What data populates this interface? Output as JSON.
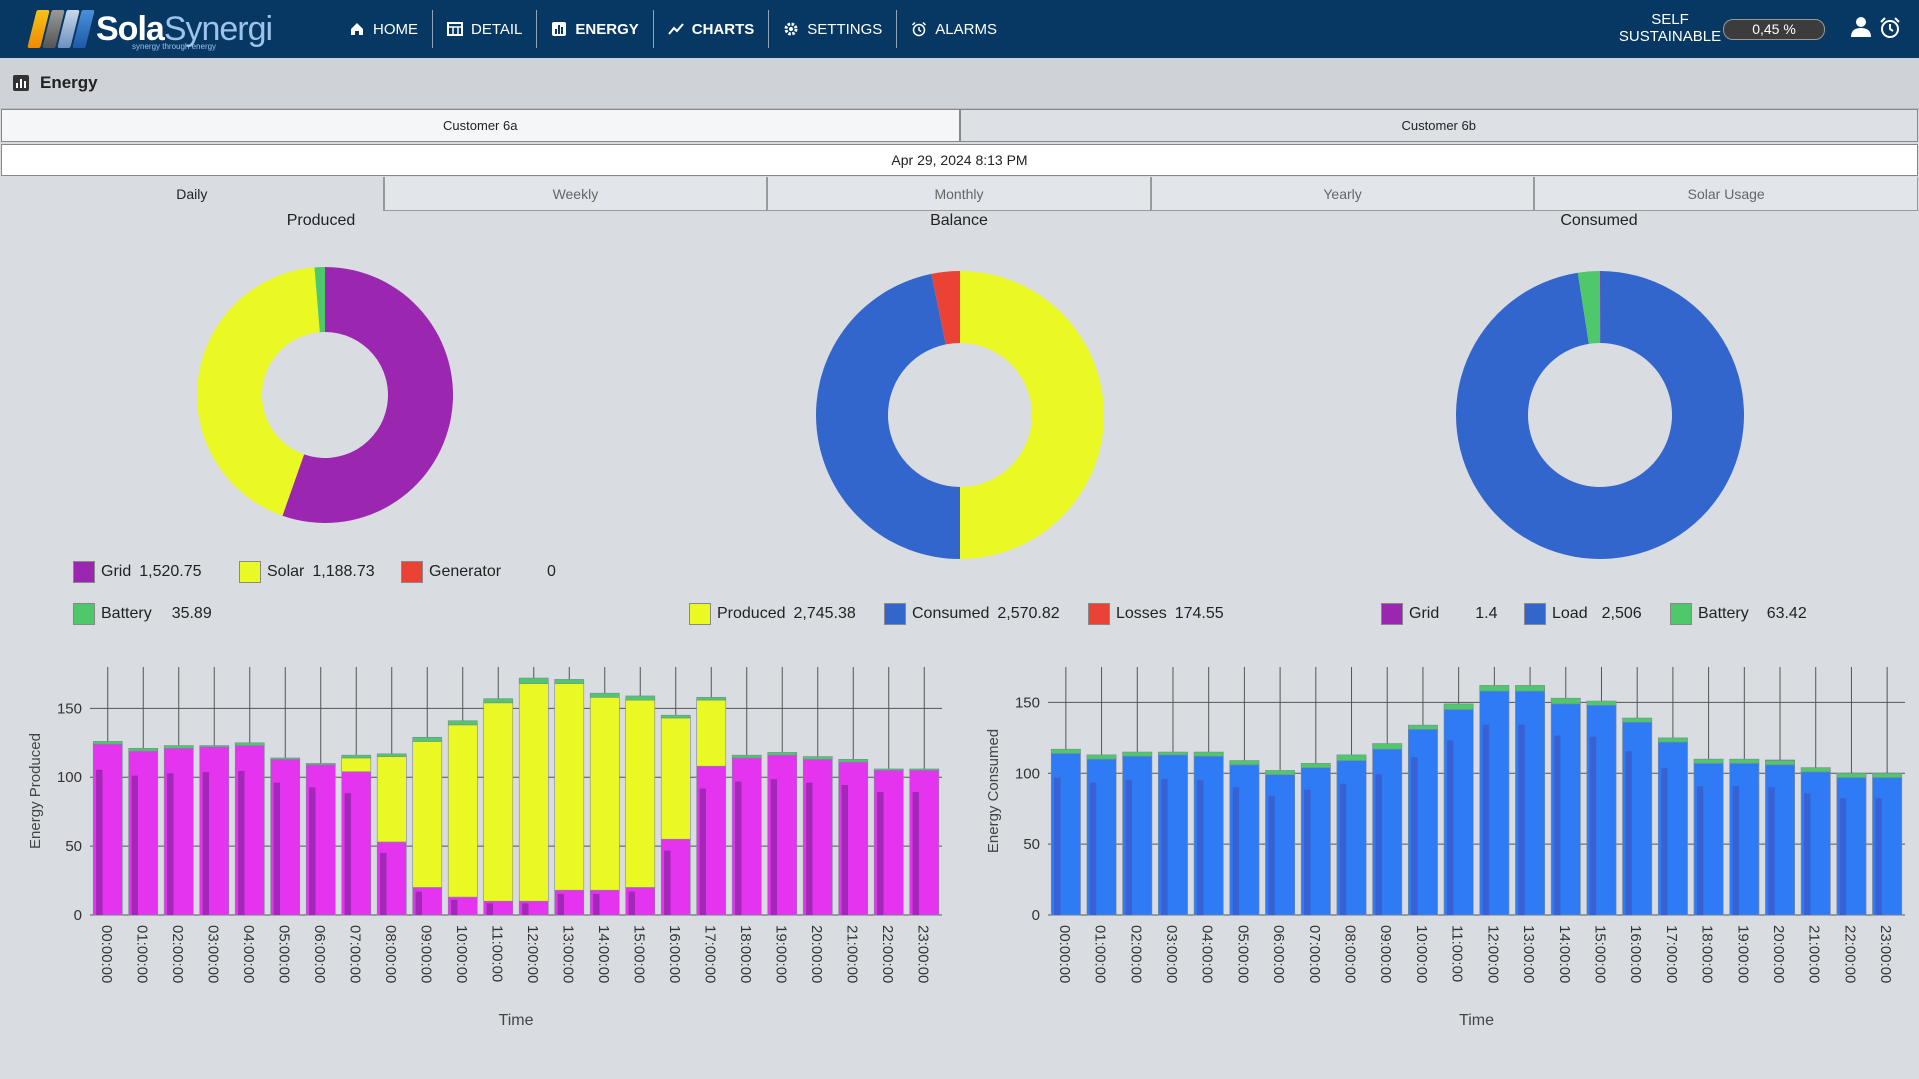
{
  "app": {
    "logo_main": "Sola",
    "logo_accent": "Synergi",
    "logo_tagline": "synergy through energy"
  },
  "nav": [
    {
      "label": "HOME",
      "icon": "home-icon",
      "active": false
    },
    {
      "label": "DETAIL",
      "icon": "table-icon",
      "active": false
    },
    {
      "label": "ENERGY",
      "icon": "bar-chart-icon",
      "active": true
    },
    {
      "label": "CHARTS",
      "icon": "line-chart-icon",
      "active": true
    },
    {
      "label": "SETTINGS",
      "icon": "gear-icon",
      "active": false
    },
    {
      "label": "ALARMS",
      "icon": "alarm-clock-icon",
      "active": false
    }
  ],
  "self_sustainable": {
    "label_line1": "SELF",
    "label_line2": "SUSTAINABLE",
    "value": "0,45 %"
  },
  "page": {
    "title": "Energy"
  },
  "customers": {
    "tab_a": "Customer 6a",
    "tab_b": "Customer 6b"
  },
  "date_label": "Apr 29, 2024 8:13 PM",
  "period_tabs": [
    "Daily",
    "Weekly",
    "Monthly",
    "Yearly",
    "Solar Usage"
  ],
  "colors": {
    "grid": "#9b27b0",
    "solar": "#eaf823",
    "generator": "#ea4335",
    "battery": "#4ec86b",
    "consumed": "#3366cc",
    "losses": "#ea4335",
    "grid_bar": "#e534f0",
    "grid_bar_inner": "#9b27b0",
    "load_bar": "#2f7bf5",
    "load_bar_inner": "#3a5fcf"
  },
  "donuts": {
    "produced": {
      "title": "Produced",
      "legend": [
        {
          "name": "Grid",
          "display": "1,520.75",
          "value": 1520.75,
          "color": "#9b27b0"
        },
        {
          "name": "Solar",
          "display": "1,188.73",
          "value": 1188.73,
          "color": "#eaf823"
        },
        {
          "name": "Generator",
          "display": "0",
          "value": 0,
          "color": "#ea4335"
        },
        {
          "name": "Battery",
          "display": "35.89",
          "value": 35.89,
          "color": "#4ec86b"
        }
      ]
    },
    "balance": {
      "title": "Balance",
      "legend": [
        {
          "name": "Produced",
          "display": "2,745.38",
          "value": 2745.38,
          "color": "#eaf823"
        },
        {
          "name": "Consumed",
          "display": "2,570.82",
          "value": 2570.82,
          "color": "#3366cc"
        },
        {
          "name": "Losses",
          "display": "174.55",
          "value": 174.55,
          "color": "#ea4335"
        }
      ]
    },
    "consumed": {
      "title": "Consumed",
      "legend": [
        {
          "name": "Grid",
          "display": "1.4",
          "value": 1.4,
          "color": "#9b27b0"
        },
        {
          "name": "Load",
          "display": "2,506",
          "value": 2506,
          "color": "#3366cc"
        },
        {
          "name": "Battery",
          "display": "63.42",
          "value": 63.42,
          "color": "#4ec86b"
        }
      ]
    }
  },
  "chart_data": [
    {
      "type": "bar",
      "stacked": true,
      "ylabel": "Energy Produced",
      "xlabel": "Time",
      "ylim": [
        0,
        180
      ],
      "yticks": [
        0,
        50,
        100,
        150
      ],
      "grid": true,
      "categories": [
        "00:00:00",
        "01:00:00",
        "02:00:00",
        "03:00:00",
        "04:00:00",
        "05:00:00",
        "06:00:00",
        "07:00:00",
        "08:00:00",
        "09:00:00",
        "10:00:00",
        "11:00:00",
        "12:00:00",
        "13:00:00",
        "14:00:00",
        "15:00:00",
        "16:00:00",
        "17:00:00",
        "18:00:00",
        "19:00:00",
        "20:00:00",
        "21:00:00",
        "22:00:00",
        "23:00:00"
      ],
      "series": [
        {
          "name": "Grid",
          "values": [
            124,
            119,
            121,
            122,
            123,
            113,
            109,
            104,
            53,
            20,
            13,
            10,
            10,
            18,
            18,
            20,
            55,
            108,
            114,
            116,
            113,
            111,
            105,
            105
          ]
        },
        {
          "name": "Solar",
          "values": [
            0,
            0,
            0,
            0,
            0,
            0,
            0,
            10,
            62,
            106,
            125,
            144,
            158,
            150,
            140,
            136,
            88,
            48,
            0,
            0,
            0,
            0,
            0,
            0
          ]
        },
        {
          "name": "Battery",
          "values": [
            2,
            2,
            2,
            1,
            2,
            1,
            1,
            2,
            2,
            3,
            3,
            3,
            4,
            3,
            3,
            3,
            2,
            2,
            2,
            2,
            2,
            2,
            1,
            1
          ]
        }
      ]
    },
    {
      "type": "bar",
      "stacked": true,
      "ylabel": "Energy Consumed",
      "xlabel": "Time",
      "ylim": [
        0,
        175
      ],
      "yticks": [
        0,
        50,
        100,
        150
      ],
      "grid": true,
      "categories": [
        "00:00:00",
        "01:00:00",
        "02:00:00",
        "03:00:00",
        "04:00:00",
        "05:00:00",
        "06:00:00",
        "07:00:00",
        "08:00:00",
        "09:00:00",
        "10:00:00",
        "11:00:00",
        "12:00:00",
        "13:00:00",
        "14:00:00",
        "15:00:00",
        "16:00:00",
        "17:00:00",
        "18:00:00",
        "19:00:00",
        "20:00:00",
        "21:00:00",
        "22:00:00",
        "23:00:00"
      ],
      "series": [
        {
          "name": "Load",
          "values": [
            114,
            110,
            112,
            113,
            112,
            106,
            99,
            104,
            109,
            117,
            131,
            145,
            158,
            158,
            149,
            148,
            136,
            122,
            107,
            107,
            106,
            101,
            97,
            97
          ]
        },
        {
          "name": "Battery",
          "values": [
            3,
            3,
            3,
            2,
            3,
            3,
            3,
            3,
            4,
            4,
            3,
            4,
            4,
            4,
            4,
            3,
            3,
            3,
            3,
            3,
            3,
            3,
            3,
            3
          ]
        },
        {
          "name": "Grid",
          "values": [
            0,
            0,
            0,
            0,
            0,
            0,
            0,
            0,
            0,
            0,
            0,
            0,
            0,
            0,
            0,
            0,
            0,
            0,
            0,
            0,
            0.4,
            0,
            0,
            0
          ]
        }
      ]
    }
  ]
}
